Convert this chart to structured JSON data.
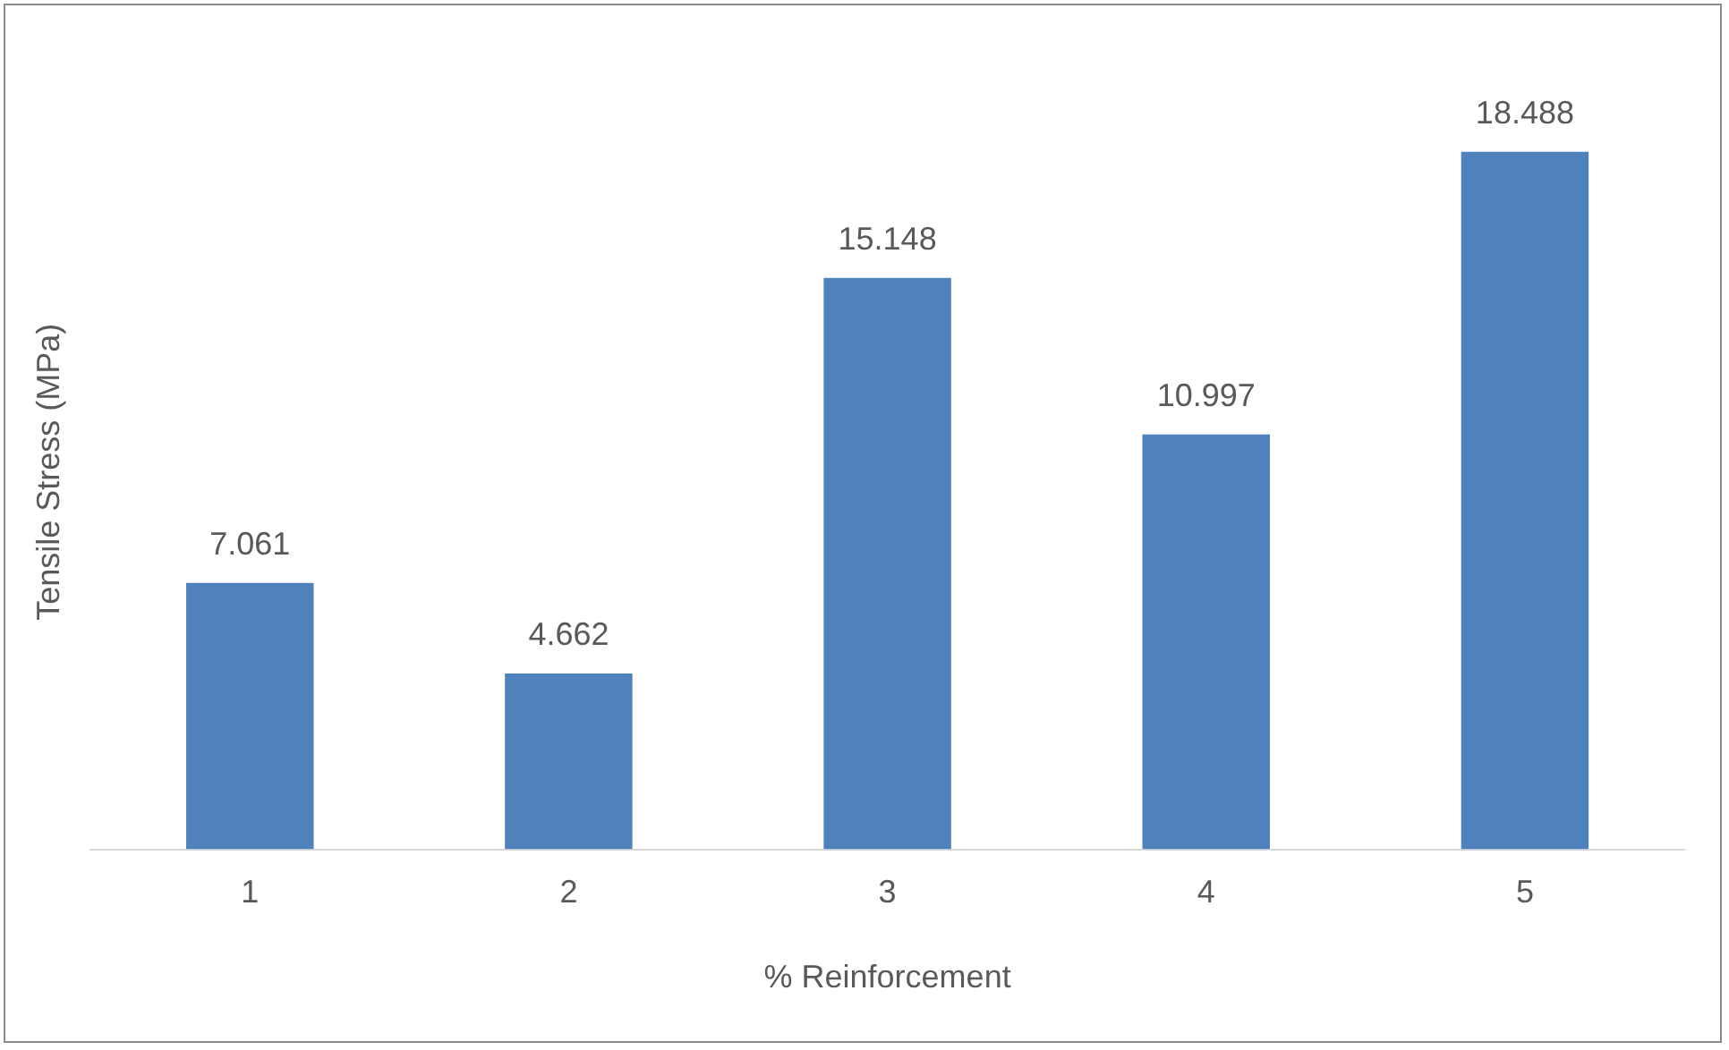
{
  "chart_data": {
    "type": "bar",
    "xlabel": "% Reinforcement",
    "ylabel": "Tensile Stress (MPa)",
    "categories": [
      "1",
      "2",
      "3",
      "4",
      "5"
    ],
    "values": [
      7.061,
      4.662,
      15.148,
      10.997,
      18.488
    ],
    "color": "#4f81bd",
    "data_labels": true,
    "grid": false,
    "legend": false,
    "tick_labels": "x"
  }
}
